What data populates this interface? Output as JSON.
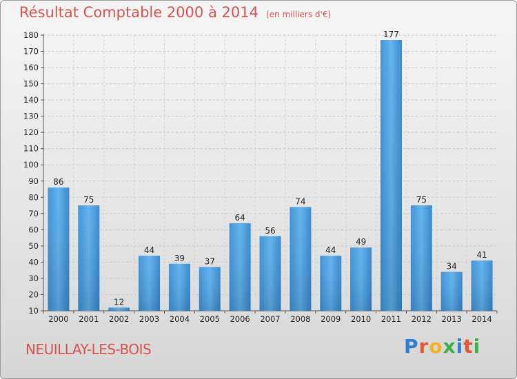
{
  "header": {
    "title": "Résultat Comptable 2000 à 2014",
    "unit": "(en milliers d'€)"
  },
  "footer": {
    "commune": "NEUILLAY-LES-BOIS",
    "brand": "Proxiti",
    "brand_colors": [
      "#2e7fd0",
      "#e9542e",
      "#f2b51d",
      "#3ab04a",
      "#2e7fd0",
      "#e9542e",
      "#3ab04a"
    ]
  },
  "chart_data": {
    "type": "bar",
    "categories": [
      "2000",
      "2001",
      "2002",
      "2003",
      "2004",
      "2005",
      "2006",
      "2007",
      "2008",
      "2009",
      "2010",
      "2011",
      "2012",
      "2013",
      "2014"
    ],
    "values": [
      86,
      75,
      12,
      44,
      39,
      37,
      64,
      56,
      74,
      44,
      49,
      177,
      75,
      34,
      41
    ],
    "ylim": [
      10,
      180
    ],
    "yticks": [
      10,
      20,
      30,
      40,
      50,
      60,
      70,
      80,
      90,
      100,
      110,
      120,
      130,
      140,
      150,
      160,
      170,
      180
    ],
    "grid": true,
    "bar_color": "#4a9fe0"
  }
}
